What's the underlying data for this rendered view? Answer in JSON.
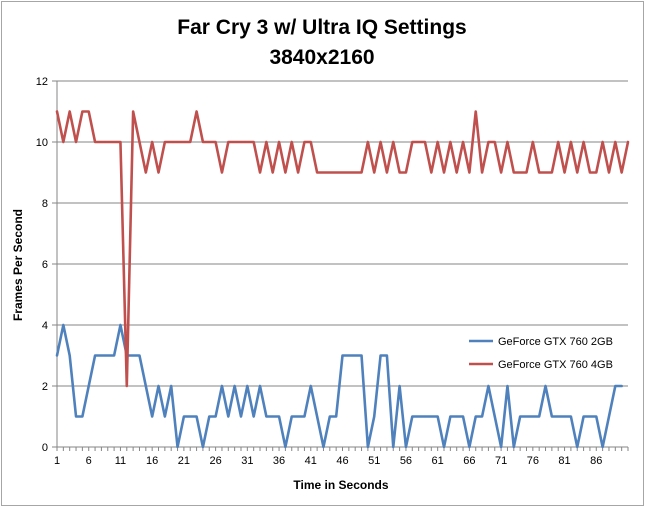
{
  "chart_data": {
    "type": "line",
    "title": "Far Cry 3 w/ Ultra IQ Settings",
    "subtitle": "3840x2160",
    "xlabel": "Time in Seconds",
    "ylabel": "Frames Per Second",
    "ylim": [
      0,
      12
    ],
    "ytick_step": 2,
    "xlim": [
      1,
      91
    ],
    "xticks": [
      1,
      6,
      11,
      16,
      21,
      26,
      31,
      36,
      41,
      46,
      51,
      56,
      61,
      66,
      71,
      76,
      81,
      86
    ],
    "grid": "horizontal",
    "legend": "right",
    "series": [
      {
        "name": "GeForce GTX 760 2GB",
        "color": "#4f81bd",
        "values": [
          3,
          4,
          3,
          1,
          1,
          2,
          3,
          3,
          3,
          3,
          4,
          3,
          3,
          3,
          2,
          1,
          2,
          1,
          2,
          0,
          1,
          1,
          1,
          0,
          1,
          1,
          2,
          1,
          2,
          1,
          2,
          1,
          2,
          1,
          1,
          1,
          0,
          1,
          1,
          1,
          2,
          1,
          0,
          1,
          1,
          3,
          3,
          3,
          3,
          0,
          1,
          3,
          3,
          0,
          2,
          0,
          1,
          1,
          1,
          1,
          1,
          0,
          1,
          1,
          1,
          0,
          1,
          1,
          2,
          1,
          0,
          2,
          0,
          1,
          1,
          1,
          1,
          2,
          1,
          1,
          1,
          1,
          0,
          1,
          1,
          1,
          0,
          1,
          2,
          2
        ]
      },
      {
        "name": "GeForce GTX 760 4GB",
        "color": "#c0504d",
        "values": [
          11,
          10,
          11,
          10,
          11,
          11,
          10,
          10,
          10,
          10,
          10,
          2,
          11,
          10,
          9,
          10,
          9,
          10,
          10,
          10,
          10,
          10,
          11,
          10,
          10,
          10,
          9,
          10,
          10,
          10,
          10,
          10,
          9,
          10,
          9,
          10,
          9,
          10,
          9,
          10,
          10,
          9,
          9,
          9,
          9,
          9,
          9,
          9,
          9,
          10,
          9,
          10,
          9,
          10,
          9,
          9,
          10,
          10,
          10,
          9,
          10,
          9,
          10,
          9,
          10,
          9,
          11,
          9,
          10,
          10,
          9,
          10,
          9,
          9,
          9,
          10,
          9,
          9,
          9,
          10,
          9,
          10,
          9,
          10,
          9,
          9,
          10,
          9,
          10,
          9,
          10
        ]
      }
    ]
  }
}
